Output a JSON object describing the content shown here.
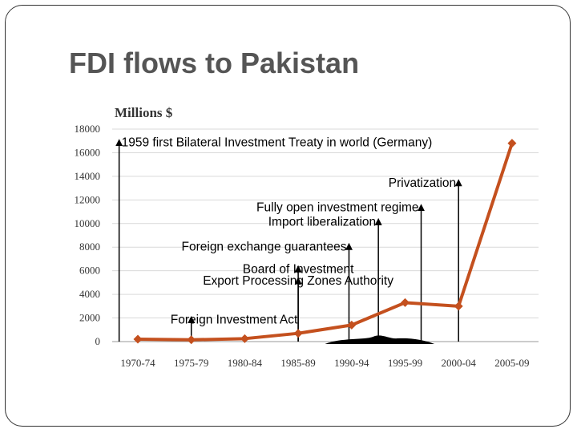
{
  "slide": {
    "title": "FDI flows to Pakistan"
  },
  "chart_data": {
    "type": "line",
    "title": "",
    "ylabel": "Millions $",
    "xlabel": "",
    "categories": [
      "1970-74",
      "1975-79",
      "1980-84",
      "1985-89",
      "1990-94",
      "1995-99",
      "2000-04",
      "2005-09"
    ],
    "series": [
      {
        "values": [
          200,
          150,
          250,
          700,
          1400,
          3300,
          3000,
          16800
        ]
      }
    ],
    "ylim": [
      0,
      18000
    ],
    "yticks": [
      0,
      2000,
      4000,
      6000,
      8000,
      10000,
      12000,
      14000,
      16000,
      18000
    ],
    "ytick_labels": [
      "0",
      "2000",
      "4000",
      "6000",
      "8000",
      "10000",
      "12000",
      "14000",
      "16000",
      "18000"
    ],
    "grid": true,
    "line_color": "#c4501e",
    "annotations": [
      {
        "label": "1959 first Bilateral Investment Treaty in world (Germany)",
        "x_pos": -0.35,
        "y": 17000
      },
      {
        "label": "Privatization",
        "x_pos": 6.0,
        "y": 13600
      },
      {
        "label": "Fully open investment regime",
        "x_pos": 5.3,
        "y": 11500
      },
      {
        "label": "Import liberalization",
        "x_pos": 4.5,
        "y": 10300
      },
      {
        "label": "Foreign exchange guarantees",
        "x_pos": 3.95,
        "y": 8200
      },
      {
        "label": "Board of Investment",
        "x_pos": 3.0,
        "y": 6300
      },
      {
        "label": "Export Processing Zones Authority",
        "x_pos": 3.0,
        "y": 5300
      },
      {
        "label": "Foreign Investment Act",
        "x_pos": 1.0,
        "y": 2000
      }
    ]
  }
}
